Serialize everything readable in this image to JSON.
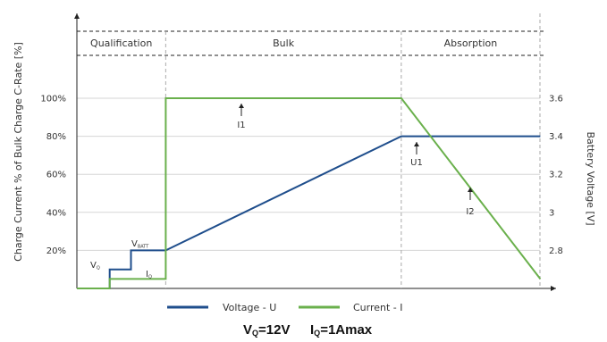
{
  "chart_data": {
    "type": "line",
    "ylabel": "Charge Current % of Bulk Charge C-Rate [%]",
    "y2label": "Battery Voltage [V]",
    "sections": [
      "Qualification",
      "Bulk",
      "Absorption"
    ],
    "left_ticks": [
      "100%",
      "80%",
      "60%",
      "40%",
      "20%"
    ],
    "left_tick_values": [
      100,
      80,
      60,
      40,
      20
    ],
    "right_ticks": [
      "3.6",
      "3.4",
      "3.2",
      "3",
      "2.8"
    ],
    "right_tick_values": [
      3.6,
      3.4,
      3.2,
      3.0,
      2.8
    ],
    "ylim": [
      0,
      100
    ],
    "y2lim": [
      2.6,
      3.6
    ],
    "grid": true,
    "annotations": [
      {
        "text": "I1"
      },
      {
        "text": "U1"
      },
      {
        "text": "I2"
      },
      {
        "text": "V",
        "sub": "Q"
      },
      {
        "text": "V",
        "sub": "BATT"
      },
      {
        "text": "I",
        "sub": "Q"
      }
    ],
    "series": [
      {
        "name": "Voltage - U",
        "color": "#1f4e8c",
        "points": [
          [
            0,
            0
          ],
          [
            17,
            0
          ],
          [
            17,
            10
          ],
          [
            28,
            10
          ],
          [
            28,
            20
          ],
          [
            46,
            20
          ],
          [
            168,
            80
          ],
          [
            240,
            80
          ]
        ]
      },
      {
        "name": "Current - I",
        "color": "#6ab04c",
        "points": [
          [
            0,
            0
          ],
          [
            17,
            0
          ],
          [
            17,
            5
          ],
          [
            46,
            5
          ],
          [
            46,
            100
          ],
          [
            168,
            100
          ],
          [
            240,
            5
          ]
        ]
      }
    ],
    "footer": [
      {
        "main": "V",
        "sub": "Q",
        "rest": "=12V"
      },
      {
        "main": "I",
        "sub": "Q",
        "rest": "=1Amax"
      }
    ]
  }
}
